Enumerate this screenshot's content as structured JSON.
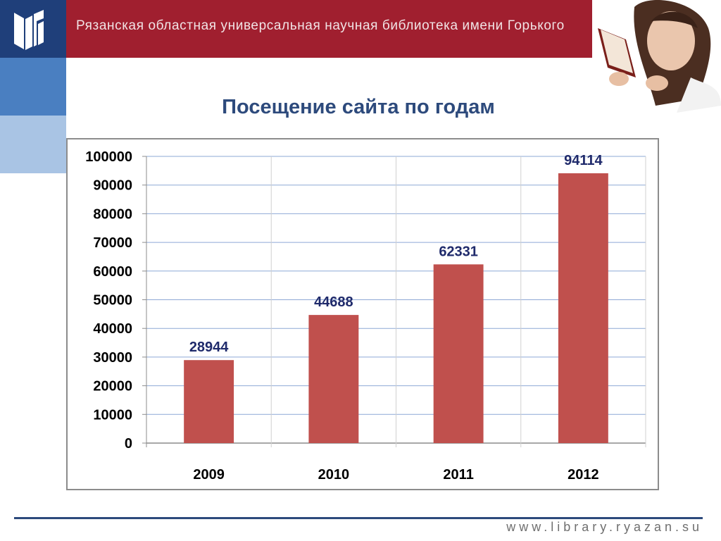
{
  "header": {
    "title": "Рязанская областная универсальная научная библиотека имени Горького"
  },
  "slide": {
    "title": "Посещение сайта по годам"
  },
  "footer": {
    "url": "www.library.ryazan.su"
  },
  "colors": {
    "bar": "#c0504d",
    "header": "#a01f2f",
    "grid": "#8ea9d6",
    "data_label": "#1f2a6b"
  },
  "chart_data": {
    "type": "bar",
    "title": "",
    "xlabel": "",
    "ylabel": "",
    "categories": [
      "2009",
      "2010",
      "2011",
      "2012"
    ],
    "values": [
      28944,
      44688,
      62331,
      94114
    ],
    "ylim": [
      0,
      100000
    ],
    "yticks": [
      0,
      10000,
      20000,
      30000,
      40000,
      50000,
      60000,
      70000,
      80000,
      90000,
      100000
    ],
    "grid": true,
    "legend": "none",
    "data_labels": [
      "28944",
      "44688",
      "62331",
      "94114"
    ]
  }
}
